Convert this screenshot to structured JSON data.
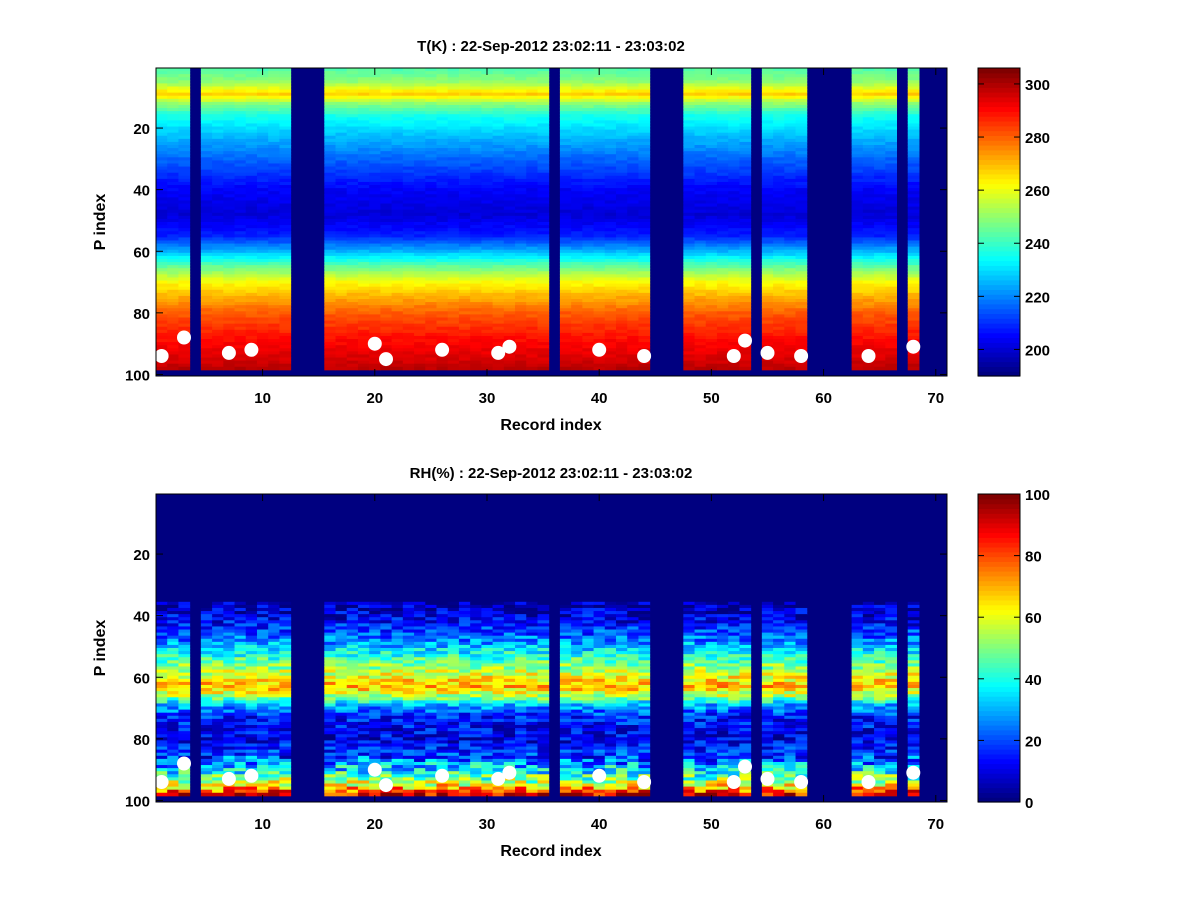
{
  "chart_data": [
    {
      "type": "heatmap",
      "title": "T(K) : 22-Sep-2012 23:02:11 - 23:03:02",
      "xlabel": "Record index",
      "ylabel": "P index",
      "xlim": [
        0.5,
        71
      ],
      "ylim": [
        100.5,
        0.5
      ],
      "y_reversed": true,
      "xticks": [
        10,
        20,
        30,
        40,
        50,
        60,
        70
      ],
      "yticks": [
        20,
        40,
        60,
        80,
        100
      ],
      "colormap": "jet",
      "clim": [
        190,
        306
      ],
      "colorbar_ticks": [
        200,
        220,
        240,
        260,
        280,
        300
      ],
      "valid_until_p_index": 98,
      "missing_records": [
        4,
        13,
        14,
        15,
        36,
        45,
        46,
        47,
        54,
        59,
        60,
        61,
        62,
        67,
        69,
        70,
        71
      ],
      "profile_model": [
        {
          "p_index": 1,
          "value": 243
        },
        {
          "p_index": 5,
          "value": 250
        },
        {
          "p_index": 9,
          "value": 268
        },
        {
          "p_index": 12,
          "value": 250
        },
        {
          "p_index": 16,
          "value": 236
        },
        {
          "p_index": 22,
          "value": 227
        },
        {
          "p_index": 30,
          "value": 216
        },
        {
          "p_index": 40,
          "value": 204
        },
        {
          "p_index": 48,
          "value": 200
        },
        {
          "p_index": 55,
          "value": 208
        },
        {
          "p_index": 60,
          "value": 225
        },
        {
          "p_index": 65,
          "value": 245
        },
        {
          "p_index": 70,
          "value": 262
        },
        {
          "p_index": 75,
          "value": 272
        },
        {
          "p_index": 80,
          "value": 281
        },
        {
          "p_index": 88,
          "value": 290
        },
        {
          "p_index": 95,
          "value": 296
        },
        {
          "p_index": 98,
          "value": 299
        }
      ],
      "markers": [
        {
          "record": 1,
          "p_index": 94
        },
        {
          "record": 3,
          "p_index": 88
        },
        {
          "record": 7,
          "p_index": 93
        },
        {
          "record": 9,
          "p_index": 92
        },
        {
          "record": 20,
          "p_index": 90
        },
        {
          "record": 21,
          "p_index": 95
        },
        {
          "record": 26,
          "p_index": 92
        },
        {
          "record": 31,
          "p_index": 93
        },
        {
          "record": 32,
          "p_index": 91
        },
        {
          "record": 40,
          "p_index": 92
        },
        {
          "record": 44,
          "p_index": 94
        },
        {
          "record": 52,
          "p_index": 94
        },
        {
          "record": 53,
          "p_index": 89
        },
        {
          "record": 55,
          "p_index": 93
        },
        {
          "record": 58,
          "p_index": 94
        },
        {
          "record": 64,
          "p_index": 94
        },
        {
          "record": 68,
          "p_index": 91
        }
      ]
    },
    {
      "type": "heatmap",
      "title": "RH(%) : 22-Sep-2012 23:02:11 - 23:03:02",
      "xlabel": "Record index",
      "ylabel": "P index",
      "xlim": [
        0.5,
        71
      ],
      "ylim": [
        100.5,
        0.5
      ],
      "y_reversed": true,
      "xticks": [
        10,
        20,
        30,
        40,
        50,
        60,
        70
      ],
      "yticks": [
        20,
        40,
        60,
        80,
        100
      ],
      "colormap": "jet",
      "clim": [
        0,
        100
      ],
      "colorbar_ticks": [
        0,
        20,
        40,
        60,
        80,
        100
      ],
      "valid_from_p_index": 36,
      "valid_until_p_index": 98,
      "missing_records": [
        4,
        13,
        14,
        15,
        36,
        45,
        46,
        47,
        54,
        59,
        60,
        61,
        62,
        67,
        69,
        70,
        71
      ],
      "profile_model": [
        {
          "p_index": 36,
          "value": 5
        },
        {
          "p_index": 42,
          "value": 12
        },
        {
          "p_index": 48,
          "value": 25
        },
        {
          "p_index": 52,
          "value": 38
        },
        {
          "p_index": 56,
          "value": 50
        },
        {
          "p_index": 60,
          "value": 62
        },
        {
          "p_index": 63,
          "value": 70
        },
        {
          "p_index": 66,
          "value": 55
        },
        {
          "p_index": 69,
          "value": 30
        },
        {
          "p_index": 73,
          "value": 15
        },
        {
          "p_index": 80,
          "value": 10
        },
        {
          "p_index": 86,
          "value": 20
        },
        {
          "p_index": 90,
          "value": 35
        },
        {
          "p_index": 94,
          "value": 55
        },
        {
          "p_index": 97,
          "value": 80
        },
        {
          "p_index": 98,
          "value": 90
        }
      ],
      "markers": [
        {
          "record": 1,
          "p_index": 94
        },
        {
          "record": 3,
          "p_index": 88
        },
        {
          "record": 7,
          "p_index": 93
        },
        {
          "record": 9,
          "p_index": 92
        },
        {
          "record": 20,
          "p_index": 90
        },
        {
          "record": 21,
          "p_index": 95
        },
        {
          "record": 26,
          "p_index": 92
        },
        {
          "record": 31,
          "p_index": 93
        },
        {
          "record": 32,
          "p_index": 91
        },
        {
          "record": 40,
          "p_index": 92
        },
        {
          "record": 44,
          "p_index": 94
        },
        {
          "record": 52,
          "p_index": 94
        },
        {
          "record": 53,
          "p_index": 89
        },
        {
          "record": 55,
          "p_index": 93
        },
        {
          "record": 58,
          "p_index": 94
        },
        {
          "record": 64,
          "p_index": 94
        },
        {
          "record": 68,
          "p_index": 91
        }
      ]
    }
  ]
}
